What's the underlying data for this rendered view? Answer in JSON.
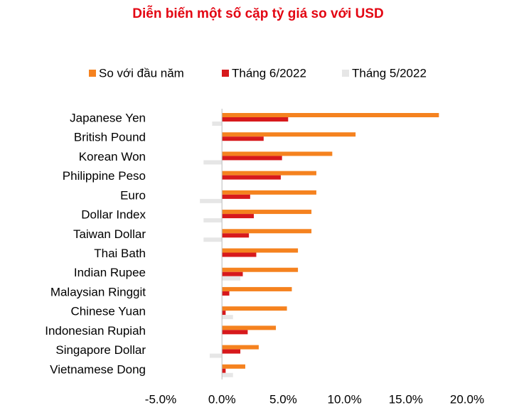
{
  "chart_data": {
    "type": "bar",
    "title": "Diễn biến một số cặp tỷ giá so với USD",
    "title_color": "#e30613",
    "categories": [
      "Japanese Yen",
      "British Pound",
      "Korean Won",
      "Philippine Peso",
      "Euro",
      "Dollar Index",
      "Taiwan Dollar",
      "Thai Bath",
      "Indian Rupee",
      "Malaysian Ringgit",
      "Chinese Yuan",
      "Indonesian Rupiah",
      "Singapore Dollar",
      "Vietnamese Dong"
    ],
    "series": [
      {
        "name": "So với đầu năm",
        "color": "#f5821f",
        "values": [
          17.7,
          10.9,
          9.0,
          7.7,
          7.7,
          7.3,
          7.3,
          6.2,
          6.2,
          5.7,
          5.3,
          4.4,
          3.0,
          1.9
        ]
      },
      {
        "name": "Tháng 6/2022",
        "color": "#d7191c",
        "values": [
          5.4,
          3.4,
          4.9,
          4.8,
          2.3,
          2.6,
          2.2,
          2.8,
          1.7,
          0.6,
          0.3,
          2.1,
          1.5,
          0.3
        ]
      },
      {
        "name": "Tháng 5/2022",
        "color": "#e6e6e6",
        "values": [
          -0.8,
          0,
          -1.5,
          0,
          -1.8,
          -1.5,
          -1.5,
          0,
          1.5,
          0,
          0.9,
          0,
          -1.0,
          0.9
        ]
      }
    ],
    "xlim": [
      -5,
      20
    ],
    "xticks": [
      {
        "value": -5,
        "label": "-5.0%"
      },
      {
        "value": 0,
        "label": "0.0%"
      },
      {
        "value": 5,
        "label": "5.0%"
      },
      {
        "value": 10,
        "label": "10.0%"
      },
      {
        "value": 15,
        "label": "15.0%"
      },
      {
        "value": 20,
        "label": "20.0%"
      }
    ],
    "grid": false
  }
}
